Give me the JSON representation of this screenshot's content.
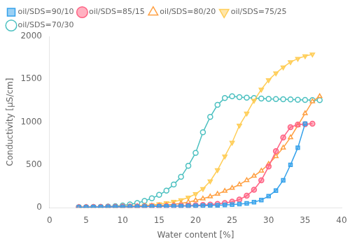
{
  "chart_data": {
    "type": "line",
    "xlabel": "Water content [%]",
    "ylabel": "Conductivity [μS/cm]",
    "xlim": [
      0,
      40
    ],
    "ylim": [
      0,
      2000
    ],
    "xticks": [
      0,
      5,
      10,
      15,
      20,
      25,
      30,
      35,
      40
    ],
    "yticks": [
      0,
      500,
      1000,
      1500,
      2000
    ],
    "grid": false,
    "legend": "upper left",
    "series": [
      {
        "name": "oil/SDS=90/10",
        "marker": "square",
        "line_style": "solid",
        "x": [
          4,
          5,
          6,
          7,
          8,
          9,
          10,
          11,
          12,
          13,
          14,
          15,
          16,
          17,
          18,
          19,
          20,
          21,
          22,
          23,
          24,
          25,
          26,
          27,
          28,
          29,
          30,
          31,
          32,
          33,
          34,
          35
        ],
        "values": [
          5,
          6,
          7,
          8,
          9,
          10,
          11,
          12,
          13,
          14,
          15,
          16,
          17,
          18,
          19,
          20,
          22,
          24,
          26,
          28,
          32,
          36,
          42,
          50,
          65,
          90,
          135,
          200,
          320,
          500,
          700,
          980
        ]
      },
      {
        "name": "oil/SDS=85/15",
        "marker": "circle",
        "line_style": "solid",
        "x": [
          4,
          5,
          6,
          7,
          8,
          9,
          10,
          11,
          12,
          13,
          14,
          15,
          16,
          17,
          18,
          19,
          20,
          21,
          22,
          23,
          24,
          25,
          26,
          27,
          28,
          29,
          30,
          31,
          32,
          33,
          34,
          35,
          36
        ],
        "values": [
          5,
          6,
          7,
          8,
          9,
          10,
          11,
          12,
          13,
          14,
          15,
          16,
          18,
          20,
          22,
          25,
          28,
          32,
          37,
          44,
          55,
          70,
          95,
          140,
          210,
          320,
          480,
          660,
          820,
          940,
          970,
          975,
          980
        ]
      },
      {
        "name": "oil/SDS=80/20",
        "marker": "triangle-open",
        "line_style": "solid",
        "x": [
          4,
          5,
          6,
          7,
          8,
          9,
          10,
          11,
          12,
          13,
          14,
          15,
          16,
          17,
          18,
          19,
          20,
          21,
          22,
          23,
          24,
          25,
          26,
          27,
          28,
          29,
          30,
          31,
          32,
          33,
          34,
          35,
          36,
          37
        ],
        "values": [
          5,
          6,
          7,
          8,
          9,
          10,
          12,
          14,
          16,
          19,
          22,
          26,
          32,
          40,
          50,
          65,
          85,
          105,
          130,
          160,
          195,
          230,
          270,
          320,
          370,
          430,
          510,
          600,
          700,
          820,
          960,
          1100,
          1240,
          1300
        ]
      },
      {
        "name": "oil/SDS=75/25",
        "marker": "triangle-down",
        "line_style": "solid",
        "x": [
          4,
          5,
          6,
          7,
          8,
          9,
          10,
          11,
          12,
          13,
          14,
          15,
          16,
          17,
          18,
          19,
          20,
          21,
          22,
          23,
          24,
          25,
          26,
          27,
          28,
          29,
          30,
          31,
          32,
          33,
          34,
          35,
          36
        ],
        "values": [
          5,
          6,
          7,
          8,
          10,
          12,
          15,
          18,
          22,
          27,
          33,
          42,
          55,
          70,
          90,
          120,
          160,
          220,
          310,
          440,
          600,
          760,
          960,
          1100,
          1250,
          1380,
          1490,
          1570,
          1640,
          1700,
          1740,
          1770,
          1790
        ]
      },
      {
        "name": "oil/SDS=70/30",
        "marker": "circle-open",
        "line_style": "solid",
        "x": [
          4,
          5,
          6,
          7,
          8,
          9,
          10,
          11,
          12,
          13,
          14,
          15,
          16,
          17,
          18,
          19,
          20,
          21,
          22,
          23,
          24,
          25,
          26,
          27,
          28,
          29,
          30,
          31,
          32,
          33,
          34,
          35,
          36,
          37
        ],
        "values": [
          5,
          6,
          8,
          10,
          13,
          18,
          26,
          38,
          55,
          80,
          110,
          150,
          200,
          270,
          360,
          490,
          640,
          880,
          1060,
          1200,
          1280,
          1300,
          1290,
          1285,
          1280,
          1275,
          1270,
          1268,
          1265,
          1263,
          1260,
          1258,
          1255,
          1255
        ]
      }
    ]
  }
}
